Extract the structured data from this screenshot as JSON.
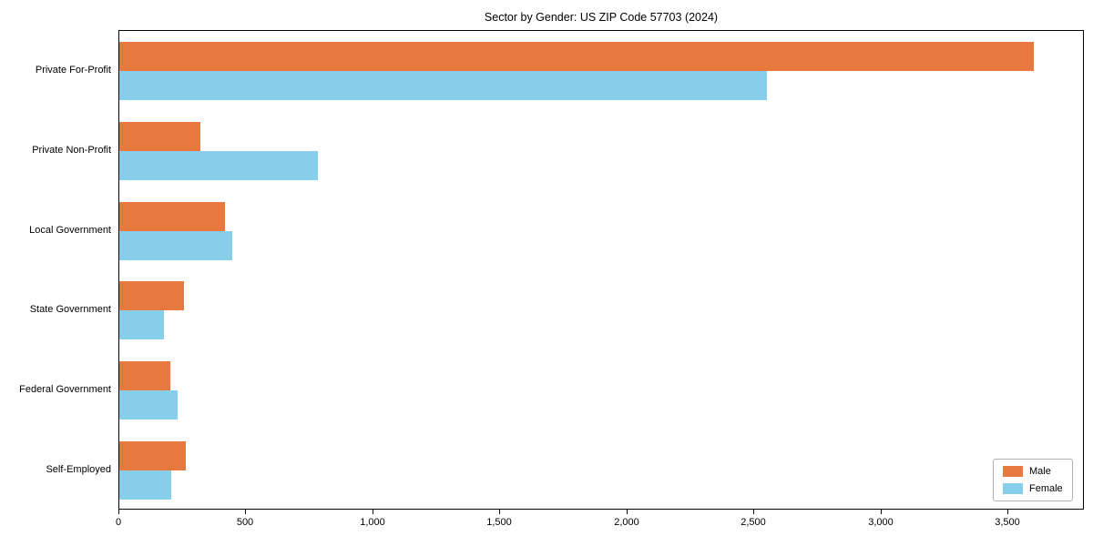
{
  "chart_data": {
    "type": "bar",
    "orientation": "horizontal",
    "title": "Sector by Gender: US ZIP Code 57703 (2024)",
    "categories": [
      "Private For-Profit",
      "Private Non-Profit",
      "Local Government",
      "State Government",
      "Federal Government",
      "Self-Employed"
    ],
    "series": [
      {
        "name": "Male",
        "color": "#e8793e",
        "values": [
          3600,
          320,
          415,
          255,
          200,
          260
        ]
      },
      {
        "name": "Female",
        "color": "#87ceeb",
        "values": [
          2550,
          780,
          445,
          175,
          230,
          205
        ]
      }
    ],
    "xlabel": "",
    "ylabel": "",
    "xlim": [
      0,
      3800
    ],
    "xticks": [
      0,
      500,
      1000,
      1500,
      2000,
      2500,
      3000,
      3500
    ],
    "xtick_labels": [
      "0",
      "500",
      "1,000",
      "1,500",
      "2,000",
      "2,500",
      "3,000",
      "3,500"
    ],
    "grid": false,
    "legend_position": "lower right",
    "colors": {
      "spine": "#000000",
      "background": "#ffffff",
      "text": "#000000"
    }
  }
}
